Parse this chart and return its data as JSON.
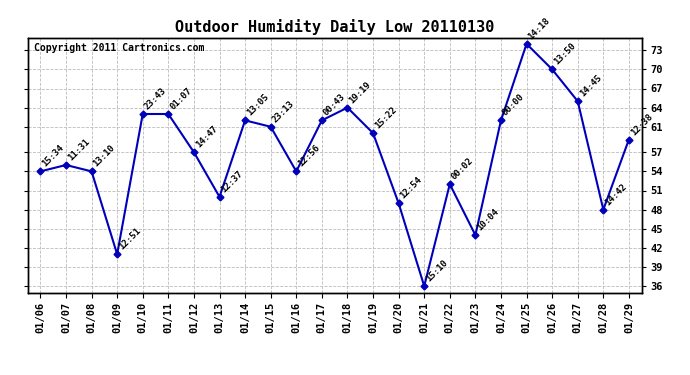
{
  "title": "Outdoor Humidity Daily Low 20110130",
  "copyright": "Copyright 2011 Cartronics.com",
  "dates": [
    "01/06",
    "01/07",
    "01/08",
    "01/09",
    "01/10",
    "01/11",
    "01/12",
    "01/13",
    "01/14",
    "01/15",
    "01/16",
    "01/17",
    "01/18",
    "01/19",
    "01/20",
    "01/21",
    "01/22",
    "01/23",
    "01/24",
    "01/25",
    "01/26",
    "01/27",
    "01/28",
    "01/29"
  ],
  "values": [
    54,
    55,
    54,
    41,
    63,
    63,
    57,
    50,
    62,
    61,
    54,
    62,
    64,
    60,
    49,
    36,
    52,
    44,
    62,
    74,
    70,
    65,
    48,
    59
  ],
  "times": [
    "15:34",
    "11:31",
    "13:10",
    "12:51",
    "23:43",
    "01:07",
    "14:47",
    "12:37",
    "13:05",
    "23:13",
    "12:56",
    "00:43",
    "19:19",
    "15:22",
    "12:54",
    "15:10",
    "00:02",
    "10:04",
    "00:00",
    "14:18",
    "13:50",
    "14:45",
    "14:42",
    "12:38"
  ],
  "ylim": [
    35,
    75
  ],
  "yticks": [
    36,
    39,
    42,
    45,
    48,
    51,
    54,
    57,
    61,
    64,
    67,
    70,
    73
  ],
  "line_color": "#0000bb",
  "marker_color": "#0000bb",
  "grid_color": "#bbbbbb",
  "bg_color": "#ffffff",
  "title_fontsize": 11,
  "copyright_fontsize": 7,
  "label_fontsize": 6.5,
  "tick_fontsize": 7.5
}
